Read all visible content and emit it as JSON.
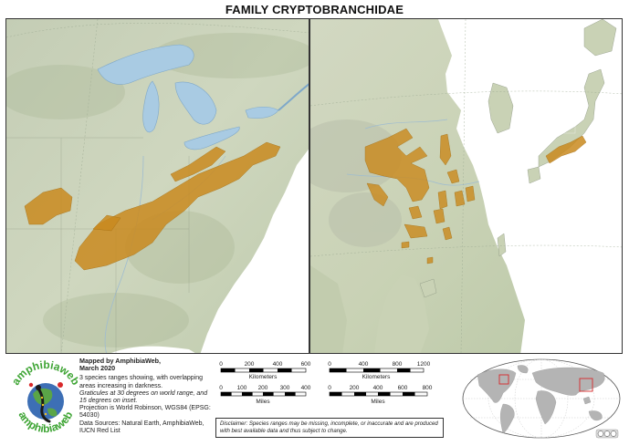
{
  "title": "FAMILY CRYPTOBRANCHIDAE",
  "logo": {
    "text_top": "amphibiaweb",
    "text_bottom": "amphibiaweb"
  },
  "meta": {
    "mapped_by": "Mapped by AmphibiaWeb,",
    "date": "March 2020",
    "species_note": "3 species ranges showing, with overlapping areas increasing in darkness.",
    "graticules": "Graticules at 30 degrees on world range, and 15 degrees on inset.",
    "projection": "Projection is World Robinson, WGS84 (EPSG: 54030)",
    "sources": "Data Sources: Natural Earth, AmphibiaWeb, IUCN Red List"
  },
  "scale_left": {
    "km_ticks": [
      "0",
      "200",
      "400",
      "600"
    ],
    "km_label": "Kilometers",
    "mi_ticks": [
      "0",
      "100",
      "200",
      "300",
      "400"
    ],
    "mi_label": "Miles"
  },
  "scale_right": {
    "km_ticks": [
      "0",
      "400",
      "800",
      "1200"
    ],
    "km_label": "Kilometers",
    "mi_ticks": [
      "0",
      "200",
      "400",
      "600",
      "800"
    ],
    "mi_label": "Miles"
  },
  "disclaimer": "Disclaimer: Species ranges may be missing, incomplete, or inaccurate and are produced with best available data and thus subject to change.",
  "colors": {
    "range": "#c98a1f",
    "water": "#a9cbe3",
    "land": "#c9d3b8",
    "ocean": "#ffffff"
  }
}
